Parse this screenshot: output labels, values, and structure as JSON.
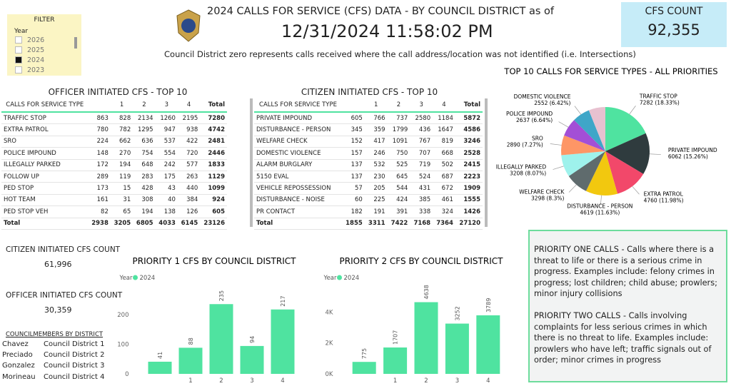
{
  "filter": {
    "title": "FILTER",
    "label": "Year",
    "options": [
      "2026",
      "2025",
      "2024",
      "2023"
    ],
    "checked": [
      false,
      false,
      true,
      false
    ]
  },
  "header": {
    "title": "2024 CALLS FOR SERVICE (CFS) DATA - BY COUNCIL DISTRICT as of",
    "datetime": "12/31/2024 11:58:02 PM",
    "note": "Council District zero represents calls received where the call address/location was not identified (i.e. Intersections)"
  },
  "cfs_count": {
    "label": "CFS COUNT",
    "value": "92,355"
  },
  "officer_table": {
    "title": "OFFICER INITIATED CFS - TOP 10",
    "columns": [
      "CALLS FOR SERVICE TYPE",
      null,
      "1",
      "2",
      "3",
      "4",
      "Total"
    ],
    "rows": [
      [
        "TRAFFIC STOP",
        863,
        828,
        2134,
        1260,
        2195,
        7280
      ],
      [
        "EXTRA PATROL",
        780,
        782,
        1295,
        947,
        938,
        4742
      ],
      [
        "SRO",
        224,
        662,
        636,
        537,
        422,
        2481
      ],
      [
        "POLICE IMPOUND",
        148,
        270,
        754,
        554,
        720,
        2446
      ],
      [
        "ILLEGALLY PARKED",
        172,
        194,
        648,
        242,
        577,
        1833
      ],
      [
        "FOLLOW UP",
        289,
        119,
        283,
        175,
        263,
        1129
      ],
      [
        "PED STOP",
        173,
        15,
        428,
        43,
        440,
        1099
      ],
      [
        "HOT TEAM",
        161,
        31,
        308,
        40,
        384,
        924
      ],
      [
        "PED STOP VEH",
        82,
        65,
        194,
        138,
        126,
        605
      ],
      [
        "Total",
        2938,
        3205,
        6805,
        4033,
        6145,
        23126
      ]
    ]
  },
  "citizen_table": {
    "title": "CITIZEN INITIATED CFS - TOP 10",
    "columns": [
      "CALLS FOR SERVICE TYPE",
      null,
      "1",
      "2",
      "3",
      "4",
      "Total"
    ],
    "rows": [
      [
        "PRIVATE IMPOUND",
        605,
        766,
        737,
        2580,
        1184,
        5872
      ],
      [
        "DISTURBANCE - PERSON",
        345,
        359,
        1799,
        436,
        1647,
        4586
      ],
      [
        "WELFARE CHECK",
        152,
        417,
        1091,
        767,
        819,
        3246
      ],
      [
        "DOMESTIC VIOLENCE",
        157,
        246,
        750,
        707,
        668,
        2528
      ],
      [
        "ALARM BURGLARY",
        137,
        532,
        525,
        719,
        502,
        2415
      ],
      [
        "5150 EVAL",
        137,
        230,
        645,
        524,
        687,
        2223
      ],
      [
        "VEHICLE REPOSSESSION",
        57,
        205,
        544,
        431,
        672,
        1909
      ],
      [
        "DISTURBANCE - NOISE",
        60,
        225,
        424,
        385,
        461,
        1555
      ],
      [
        "PR CONTACT",
        182,
        191,
        391,
        338,
        324,
        1426
      ],
      [
        "Total",
        1855,
        3311,
        7422,
        7168,
        7364,
        27120
      ]
    ]
  },
  "counts": [
    {
      "label": "CITIZEN INITIATED CFS COUNT",
      "value": "61,996"
    },
    {
      "label": "OFFICER INITIATED CFS COUNT",
      "value": "30,359"
    }
  ],
  "councilmembers": {
    "title": "COUNCILMEMBERS BY DISTRICT",
    "rows": [
      [
        "Chavez",
        "Council District 1"
      ],
      [
        "Preciado",
        "Council District 2"
      ],
      [
        "Gonzalez",
        "Council District 3"
      ],
      [
        "Morineau",
        "Council District 4"
      ]
    ]
  },
  "info": [
    "PRIORITY ONE CALLS - Calls where there is a threat to life or there is a serious crime in progress. Examples include: felony crimes in progress; lost children; child abuse; prowlers; minor injury collisions",
    "PRIORITY TWO CALLS - Calls involving complaints for less serious crimes in which there is no threat to life. Examples include: prowlers who have left; traffic signals out of order; minor crimes in progress"
  ],
  "chart_data": [
    {
      "type": "pie",
      "title": "TOP 10 CALLS FOR SERVICE TYPES - ALL PRIORITIES",
      "categories": [
        "TRAFFIC STOP",
        "PRIVATE IMPOUND",
        "EXTRA PATROL",
        "DISTURBANCE - PERSON",
        "WELFARE CHECK",
        "ILLEGALLY PARKED",
        "SRO",
        "POLICE IMPOUND",
        "DOMESTIC VIOLENCE",
        null
      ],
      "values": [
        7282,
        6062,
        4760,
        4619,
        3298,
        3208,
        2890,
        2637,
        2552,
        2419
      ],
      "value_labels": [
        "7282 (18.33%)",
        "6062 (15.26%)",
        "4760 (11.98%)",
        "4619 (11.63%)",
        "3298 (8.3%)",
        "3208 (8.07%)",
        "2890 (7.27%)",
        "2637 (6.64%)",
        "2552 (6.42%)",
        null
      ],
      "colors": [
        "#4fe3a0",
        "#2f3b3e",
        "#f2486a",
        "#f2c80f",
        "#5f6b6d",
        "#9ef2ec",
        "#fe9666",
        "#a34fd6",
        "#3fa6c8",
        "#e8c1d0"
      ]
    },
    {
      "type": "bar",
      "title": "PRIORITY 1 CFS BY COUNCIL DISTRICT",
      "legend_title": "Year",
      "categories": [
        null,
        "1",
        "2",
        "3",
        "4"
      ],
      "series": [
        {
          "name": "2024",
          "color": "#4fe3a0",
          "values": [
            41,
            88,
            235,
            94,
            217
          ]
        }
      ],
      "ylim": [
        0,
        250
      ],
      "yticks": [
        0,
        100,
        200
      ]
    },
    {
      "type": "bar",
      "title": "PRIORITY 2 CFS BY COUNCIL DISTRICT",
      "legend_title": "Year",
      "categories": [
        null,
        "1",
        "2",
        "3",
        "4"
      ],
      "series": [
        {
          "name": "2024",
          "color": "#4fe3a0",
          "values": [
            775,
            1707,
            4638,
            3252,
            3789
          ]
        }
      ],
      "ylim": [
        0,
        4800
      ],
      "yticks": [
        {
          "value": 0,
          "label": "0K"
        },
        {
          "value": 2000,
          "label": "2K"
        },
        {
          "value": 4000,
          "label": "4K"
        }
      ]
    }
  ]
}
